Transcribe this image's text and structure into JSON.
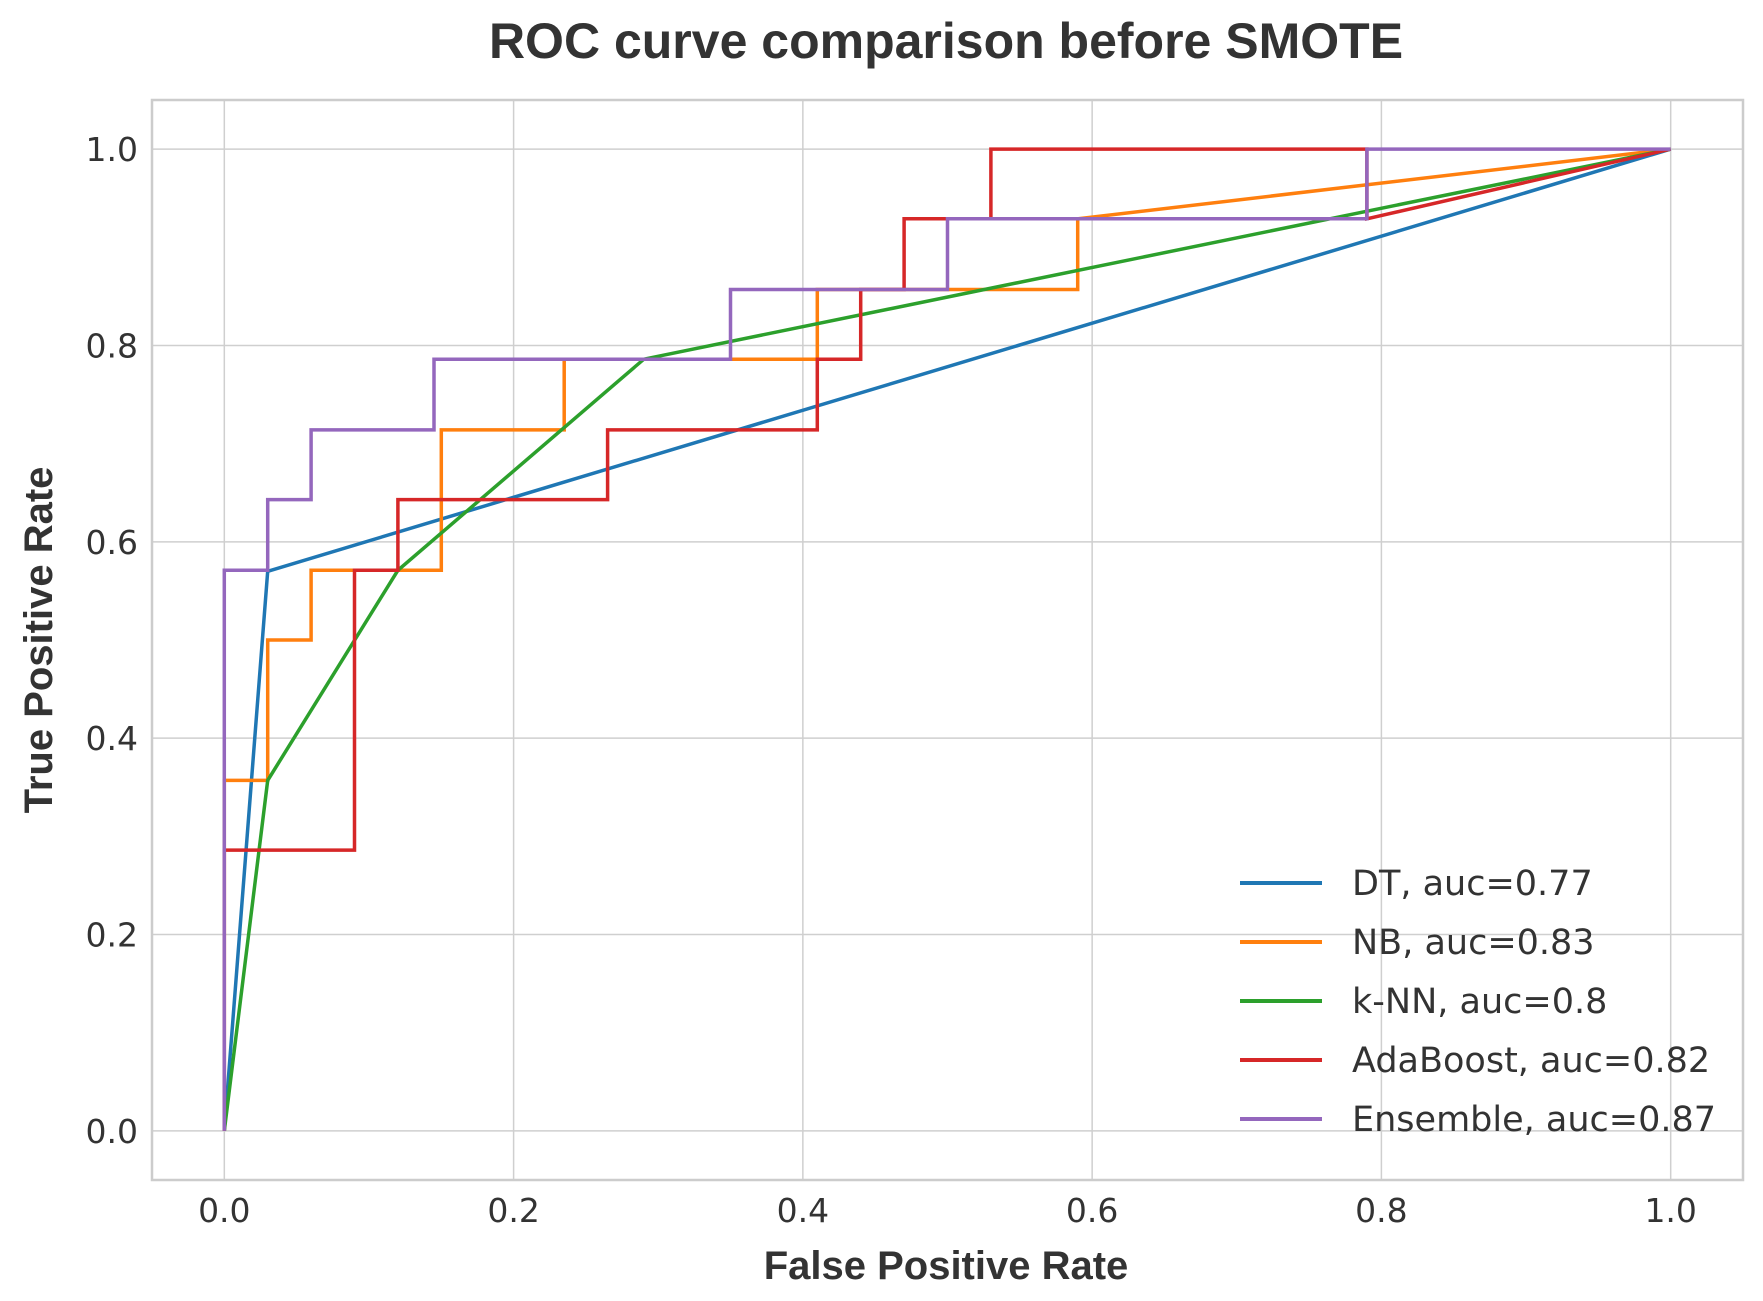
{
  "chart_data": {
    "type": "line",
    "title": "ROC curve comparison before SMOTE",
    "xlabel": "False Positive Rate",
    "ylabel": "True Positive Rate",
    "xlim": [
      -0.05,
      1.05
    ],
    "ylim": [
      -0.05,
      1.05
    ],
    "xticks": [
      0.0,
      0.2,
      0.4,
      0.6,
      0.8,
      1.0
    ],
    "yticks": [
      0.0,
      0.2,
      0.4,
      0.6,
      0.8,
      1.0
    ],
    "xtick_labels": [
      "0.0",
      "0.2",
      "0.4",
      "0.6",
      "0.8",
      "1.0"
    ],
    "ytick_labels": [
      "0.0",
      "0.2",
      "0.4",
      "0.6",
      "0.8",
      "1.0"
    ],
    "grid": true,
    "legend_position": "bottom-right",
    "series": [
      {
        "name": "DT, auc=0.77",
        "color": "#1f77b4",
        "x": [
          0.0,
          0.03,
          1.0
        ],
        "y": [
          0.0,
          0.57,
          1.0
        ]
      },
      {
        "name": "NB, auc=0.83",
        "color": "#ff7f0e",
        "x": [
          0.0,
          0.0,
          0.03,
          0.03,
          0.06,
          0.06,
          0.15,
          0.15,
          0.235,
          0.235,
          0.35,
          0.41,
          0.41,
          0.5,
          0.59,
          0.59,
          1.0
        ],
        "y": [
          0.0,
          0.357,
          0.357,
          0.5,
          0.5,
          0.571,
          0.571,
          0.714,
          0.714,
          0.786,
          0.786,
          0.786,
          0.857,
          0.857,
          0.857,
          0.929,
          1.0
        ]
      },
      {
        "name": "k-NN, auc=0.8",
        "color": "#2ca02c",
        "x": [
          0.0,
          0.03,
          0.12,
          0.29,
          1.0
        ],
        "y": [
          0.0,
          0.357,
          0.571,
          0.786,
          1.0
        ]
      },
      {
        "name": "AdaBoost, auc=0.82",
        "color": "#d62728",
        "x": [
          0.0,
          0.0,
          0.09,
          0.09,
          0.12,
          0.12,
          0.265,
          0.265,
          0.41,
          0.41,
          0.44,
          0.44,
          0.47,
          0.47,
          0.53,
          0.53,
          0.79,
          0.79,
          1.0
        ],
        "y": [
          0.0,
          0.286,
          0.286,
          0.571,
          0.571,
          0.643,
          0.643,
          0.714,
          0.714,
          0.786,
          0.786,
          0.857,
          0.857,
          0.929,
          0.929,
          1.0,
          1.0,
          0.929,
          1.0
        ]
      },
      {
        "name": "Ensemble, auc=0.87",
        "color": "#9467bd",
        "x": [
          0.0,
          0.0,
          0.03,
          0.03,
          0.06,
          0.06,
          0.145,
          0.145,
          0.35,
          0.35,
          0.5,
          0.5,
          0.79,
          0.79,
          1.0
        ],
        "y": [
          0.0,
          0.571,
          0.571,
          0.643,
          0.643,
          0.714,
          0.714,
          0.786,
          0.786,
          0.857,
          0.857,
          0.929,
          0.929,
          1.0,
          1.0
        ]
      }
    ]
  }
}
